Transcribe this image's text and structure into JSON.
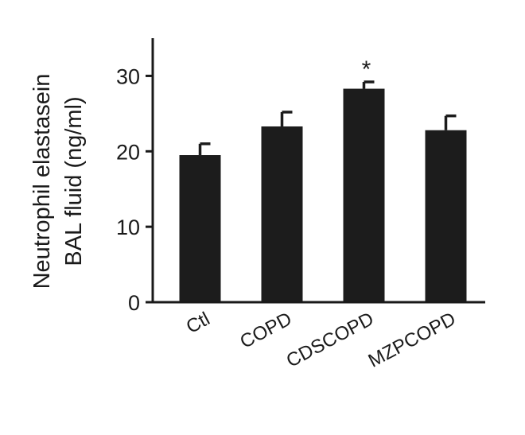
{
  "chart_data": {
    "type": "bar",
    "categories": [
      "Ctl",
      "COPD",
      "CDSCOPD",
      "MZPCOPD"
    ],
    "series": [
      {
        "values": [
          19.5,
          23.3,
          28.3,
          22.8
        ],
        "errors": [
          1.5,
          1.9,
          0.9,
          1.9
        ]
      }
    ],
    "ylabel_lines": [
      "Neutrophil elastasein",
      "BAL fluid (ng/ml)"
    ],
    "xlabel": "",
    "ylim": [
      0,
      35
    ],
    "yticks": [
      0,
      10,
      20,
      30
    ],
    "annotations": [
      {
        "category": "CDSCOPD",
        "text": "*"
      }
    ],
    "bar_color": "#1c1c1c",
    "grid": false,
    "legend": "none"
  }
}
